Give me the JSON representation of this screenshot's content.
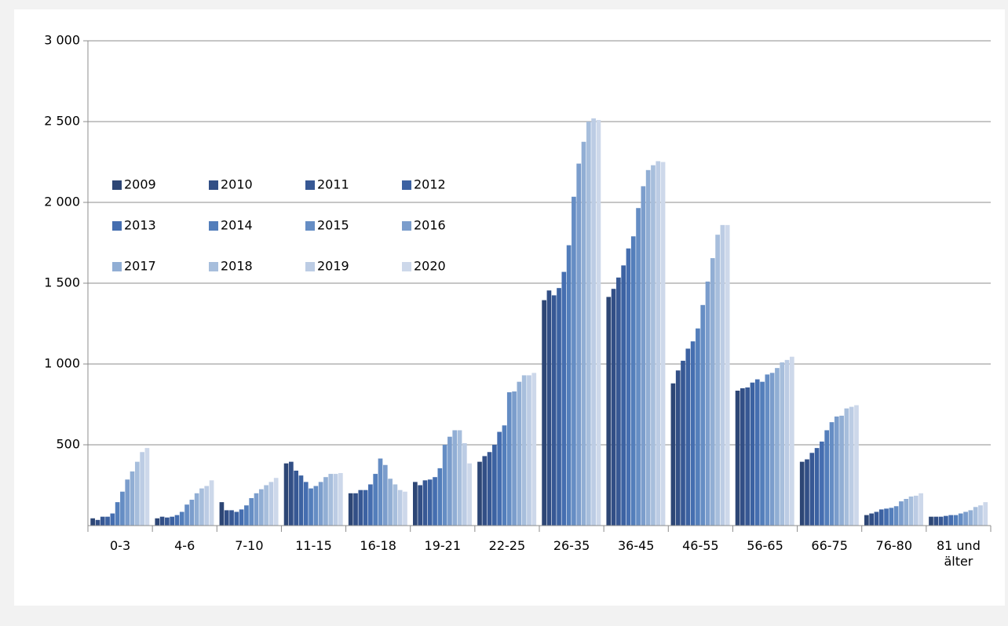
{
  "chart_data": {
    "type": "bar",
    "categories": [
      "0-3",
      "4-6",
      "7-10",
      "11-15",
      "16-18",
      "19-21",
      "22-25",
      "26-35",
      "36-45",
      "46-55",
      "56-65",
      "66-75",
      "76-80",
      "81 und älter"
    ],
    "series": [
      {
        "name": "2009",
        "color": "#2d4675",
        "values": [
          45,
          45,
          145,
          385,
          200,
          270,
          395,
          1395,
          1415,
          880,
          835,
          395,
          65,
          55
        ]
      },
      {
        "name": "2010",
        "color": "#324f86",
        "values": [
          35,
          55,
          95,
          395,
          200,
          250,
          430,
          1455,
          1465,
          960,
          850,
          410,
          75,
          55
        ]
      },
      {
        "name": "2011",
        "color": "#375894",
        "values": [
          55,
          50,
          95,
          340,
          220,
          280,
          455,
          1425,
          1535,
          1020,
          855,
          450,
          85,
          55
        ]
      },
      {
        "name": "2012",
        "color": "#3c62a2",
        "values": [
          55,
          55,
          85,
          310,
          220,
          285,
          500,
          1470,
          1610,
          1095,
          885,
          480,
          100,
          60
        ]
      },
      {
        "name": "2013",
        "color": "#456eb0",
        "values": [
          75,
          65,
          100,
          270,
          255,
          300,
          580,
          1570,
          1715,
          1140,
          905,
          520,
          105,
          65
        ]
      },
      {
        "name": "2014",
        "color": "#537ebb",
        "values": [
          145,
          85,
          125,
          230,
          320,
          355,
          620,
          1735,
          1790,
          1220,
          890,
          590,
          110,
          65
        ]
      },
      {
        "name": "2015",
        "color": "#658dc4",
        "values": [
          210,
          130,
          170,
          245,
          415,
          500,
          825,
          2035,
          1965,
          1365,
          935,
          640,
          120,
          75
        ]
      },
      {
        "name": "2016",
        "color": "#7b9dcc",
        "values": [
          285,
          160,
          200,
          270,
          375,
          550,
          830,
          2240,
          2100,
          1510,
          945,
          675,
          150,
          85
        ]
      },
      {
        "name": "2017",
        "color": "#91aed4",
        "values": [
          335,
          200,
          225,
          300,
          290,
          590,
          890,
          2375,
          2200,
          1655,
          975,
          680,
          165,
          95
        ]
      },
      {
        "name": "2018",
        "color": "#a7bedc",
        "values": [
          395,
          230,
          250,
          320,
          255,
          590,
          930,
          2500,
          2230,
          1800,
          1010,
          725,
          180,
          115
        ]
      },
      {
        "name": "2019",
        "color": "#bccce4",
        "values": [
          455,
          245,
          270,
          320,
          220,
          510,
          930,
          2520,
          2255,
          1860,
          1025,
          735,
          185,
          125
        ]
      },
      {
        "name": "2020",
        "color": "#cdd8ea",
        "values": [
          480,
          280,
          295,
          325,
          210,
          385,
          945,
          2510,
          2250,
          1860,
          1045,
          745,
          200,
          145
        ]
      }
    ],
    "ylim": [
      0,
      3000
    ],
    "yticks": [
      500,
      {
        "value": 1000,
        "label": "1 000"
      },
      {
        "value": 1500,
        "label": "1 500"
      },
      {
        "value": 2000,
        "label": "2 000"
      },
      {
        "value": 2500,
        "label": "2 500"
      },
      {
        "value": 3000,
        "label": "3 000"
      }
    ],
    "grid": true
  }
}
